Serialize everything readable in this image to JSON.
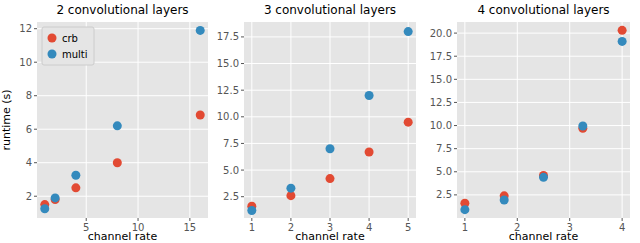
{
  "chart_data": [
    {
      "type": "scatter",
      "title": "2 convolutional layers",
      "x_label": "channel rate",
      "y_label": "runtime (s)",
      "x": [
        1,
        2,
        4,
        8,
        16
      ],
      "series": [
        {
          "name": "crb",
          "color": "#e24a33",
          "marker": "circle",
          "values": [
            1.5,
            1.8,
            2.5,
            4.0,
            6.85
          ]
        },
        {
          "name": "multi",
          "color": "#348abd",
          "marker": "circle",
          "values": [
            1.25,
            1.9,
            3.25,
            6.2,
            11.9
          ]
        }
      ],
      "xlim": [
        0.25,
        16.75
      ],
      "xticks": [
        5,
        10,
        15
      ],
      "ylim": [
        0.7,
        12.4
      ],
      "yticks": [
        2,
        4,
        6,
        8,
        10,
        12
      ],
      "grid": true,
      "legend": "upper left"
    },
    {
      "type": "scatter",
      "title": "3 convolutional layers",
      "x_label": "channel rate",
      "x": [
        1,
        2,
        3,
        4,
        5
      ],
      "series": [
        {
          "color": "#e24a33",
          "marker": "circle",
          "values": [
            1.6,
            2.6,
            4.2,
            6.7,
            9.5
          ]
        },
        {
          "color": "#348abd",
          "marker": "circle",
          "values": [
            1.2,
            3.3,
            7.0,
            12.0,
            18.0
          ]
        }
      ],
      "xlim": [
        0.8,
        5.2
      ],
      "xticks": [
        1,
        2,
        3,
        4,
        5
      ],
      "ylim": [
        0.5,
        18.9
      ],
      "yticks": [
        2.5,
        {
          "value": 5,
          "label": "5.0"
        },
        7.5,
        {
          "value": 10,
          "label": "10.0"
        },
        12.5,
        {
          "value": 15,
          "label": "15.0"
        },
        17.5
      ],
      "grid": true
    },
    {
      "type": "scatter",
      "title": "4 convolutional layers",
      "x_label": "channel rate",
      "x": [
        1,
        1.75,
        2.5,
        3.25,
        4
      ],
      "series": [
        {
          "color": "#e24a33",
          "marker": "circle",
          "values": [
            1.6,
            2.4,
            4.6,
            9.7,
            20.3
          ]
        },
        {
          "color": "#348abd",
          "marker": "circle",
          "values": [
            0.9,
            1.95,
            4.4,
            9.95,
            19.1
          ]
        }
      ],
      "xlim": [
        0.85,
        4.15
      ],
      "xticks": [
        1,
        2,
        3,
        4
      ],
      "ylim": [
        0.0,
        21.2
      ],
      "yticks": [
        2.5,
        {
          "value": 5,
          "label": "5.0"
        },
        7.5,
        {
          "value": 10,
          "label": "10.0"
        },
        12.5,
        {
          "value": 15,
          "label": "15.0"
        },
        17.5,
        {
          "value": 20,
          "label": "20.0"
        }
      ],
      "grid": true
    }
  ]
}
